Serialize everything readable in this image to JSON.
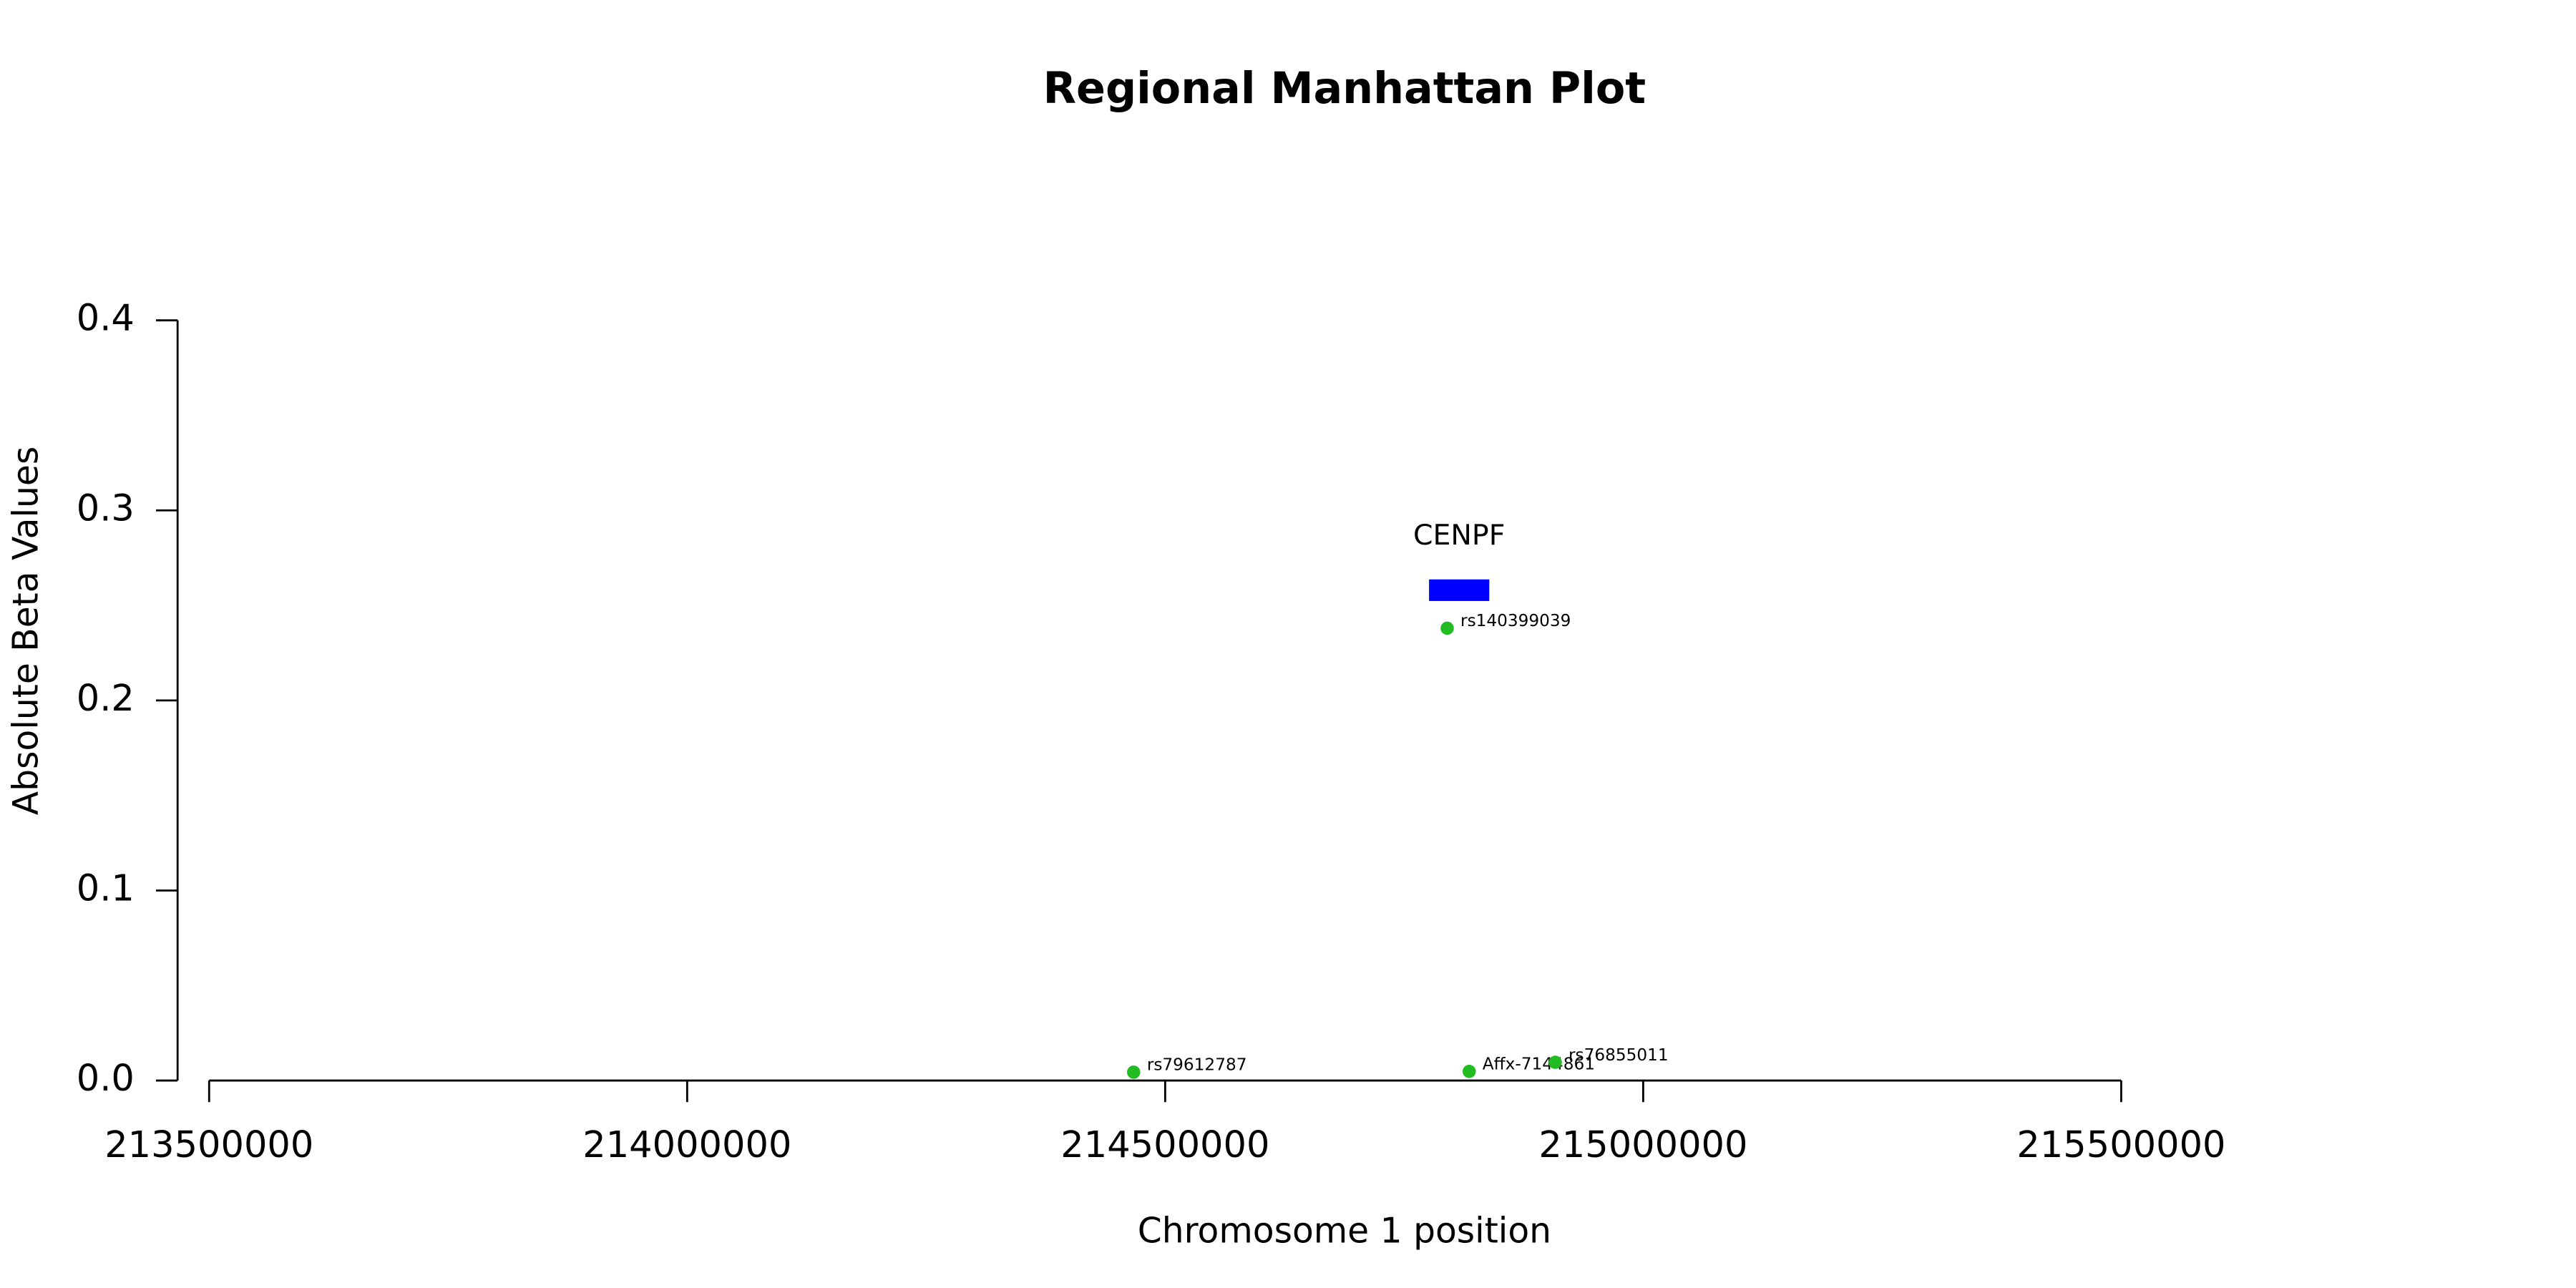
{
  "chart_data": {
    "type": "scatter",
    "title": "Regional Manhattan Plot",
    "xlabel": "Chromosome 1 position",
    "ylabel": "Absolute Beta Values",
    "xlim": [
      213500000,
      215500000
    ],
    "xticks": [
      213500000,
      214000000,
      214500000,
      215000000,
      215500000
    ],
    "ylim": [
      0,
      0.4
    ],
    "yticks": [
      {
        "value": 0,
        "label": "0.0"
      },
      0.1,
      0.2,
      0.3,
      0.4
    ],
    "point_color": "#22bb22",
    "points": [
      {
        "label": "rs79612787",
        "x": 214467000,
        "y": 0.0044
      },
      {
        "label": "Affx-7144861",
        "x": 214818000,
        "y": 0.0048
      },
      {
        "label": "rs76855011",
        "x": 214908000,
        "y": 0.0096
      },
      {
        "label": "rs140399039",
        "x": 214795000,
        "y": 0.238
      }
    ],
    "gene_color": "#0000ff",
    "genes": [
      {
        "name": "CENPF",
        "start": 214776000,
        "end": 214839000,
        "y": 0.258
      }
    ]
  }
}
